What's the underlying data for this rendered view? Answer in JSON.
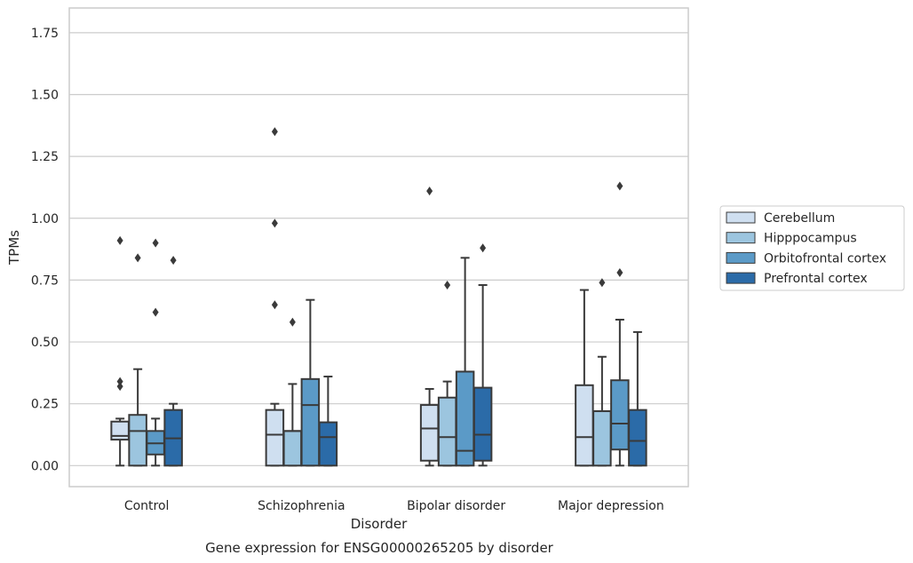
{
  "chart_data": {
    "type": "boxplot",
    "title": "Gene expression for ENSG00000265205 by disorder",
    "xlabel": "Disorder",
    "ylabel": "TPMs",
    "ylim": [
      -0.085,
      1.85
    ],
    "yticks": [
      "0.00",
      "0.25",
      "0.50",
      "0.75",
      "1.00",
      "1.25",
      "1.50",
      "1.75"
    ],
    "ytick_values": [
      0,
      0.25,
      0.5,
      0.75,
      1.0,
      1.25,
      1.5,
      1.75
    ],
    "grid": "horizontal",
    "legend_position": "right",
    "categories": [
      "Control",
      "Schizophrenia",
      "Bipolar disorder",
      "Major depression"
    ],
    "series": [
      {
        "name": "Cerebellum",
        "color": "#cfdff0",
        "boxes": [
          {
            "min": 0.0,
            "q1": 0.105,
            "median": 0.12,
            "q3": 0.178,
            "max": 0.19,
            "outliers": [
              0.91,
              0.34,
              0.32
            ]
          },
          {
            "min": 0.0,
            "q1": 0.0,
            "median": 0.125,
            "q3": 0.225,
            "max": 0.25,
            "outliers": [
              1.35,
              0.98,
              0.65
            ]
          },
          {
            "min": 0.0,
            "q1": 0.02,
            "median": 0.15,
            "q3": 0.245,
            "max": 0.31,
            "outliers": [
              1.11
            ]
          },
          {
            "min": 0.0,
            "q1": 0.0,
            "median": 0.115,
            "q3": 0.325,
            "max": 0.71,
            "outliers": []
          }
        ]
      },
      {
        "name": "Hipppocampus",
        "color": "#9cc5df",
        "boxes": [
          {
            "min": 0.0,
            "q1": 0.0,
            "median": 0.14,
            "q3": 0.205,
            "max": 0.39,
            "outliers": [
              0.84
            ]
          },
          {
            "min": 0.0,
            "q1": 0.0,
            "median": 0.14,
            "q3": 0.14,
            "max": 0.33,
            "outliers": [
              0.58
            ]
          },
          {
            "min": 0.0,
            "q1": 0.0,
            "median": 0.115,
            "q3": 0.275,
            "max": 0.34,
            "outliers": [
              0.73
            ]
          },
          {
            "min": 0.0,
            "q1": 0.0,
            "median": 0.22,
            "q3": 0.22,
            "max": 0.44,
            "outliers": [
              0.74
            ]
          }
        ]
      },
      {
        "name": "Orbitofrontal cortex",
        "color": "#5b9ac7",
        "boxes": [
          {
            "min": 0.0,
            "q1": 0.045,
            "median": 0.09,
            "q3": 0.14,
            "max": 0.19,
            "outliers": [
              0.9,
              0.62
            ]
          },
          {
            "min": 0.0,
            "q1": 0.0,
            "median": 0.245,
            "q3": 0.35,
            "max": 0.67,
            "outliers": []
          },
          {
            "min": 0.0,
            "q1": 0.0,
            "median": 0.06,
            "q3": 0.38,
            "max": 0.84,
            "outliers": []
          },
          {
            "min": 0.0,
            "q1": 0.065,
            "median": 0.17,
            "q3": 0.345,
            "max": 0.59,
            "outliers": [
              1.13,
              0.78
            ]
          }
        ]
      },
      {
        "name": "Prefrontal cortex",
        "color": "#2b6ba8",
        "boxes": [
          {
            "min": 0.0,
            "q1": 0.0,
            "median": 0.11,
            "q3": 0.225,
            "max": 0.25,
            "outliers": [
              0.83
            ]
          },
          {
            "min": 0.0,
            "q1": 0.0,
            "median": 0.115,
            "q3": 0.175,
            "max": 0.36,
            "outliers": []
          },
          {
            "min": 0.0,
            "q1": 0.02,
            "median": 0.125,
            "q3": 0.315,
            "max": 0.73,
            "outliers": [
              0.88
            ]
          },
          {
            "min": 0.0,
            "q1": 0.0,
            "median": 0.1,
            "q3": 0.225,
            "max": 0.54,
            "outliers": []
          }
        ]
      }
    ]
  }
}
